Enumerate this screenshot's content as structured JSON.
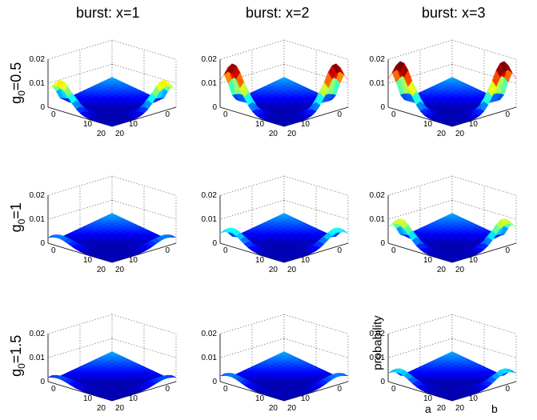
{
  "column_titles": [
    "burst: x=1",
    "burst: x=2",
    "burst: x=3"
  ],
  "row_labels": [
    {
      "prefix": "g",
      "sub": "0",
      "suffix": "=0.5"
    },
    {
      "prefix": "g",
      "sub": "0",
      "suffix": "=1"
    },
    {
      "prefix": "g",
      "sub": "0",
      "suffix": "=1.5"
    }
  ],
  "axis_labels": {
    "z": "probability",
    "a": "a",
    "b": "b"
  },
  "chart_data": {
    "type": "surface3d-grid",
    "rows": [
      "g0=0.5",
      "g0=1",
      "g0=1.5"
    ],
    "columns": [
      "x=1",
      "x=2",
      "x=3"
    ],
    "z_ticks": [
      "0",
      "0.01",
      "0.02"
    ],
    "a_ticks": [
      "0",
      "10",
      "20"
    ],
    "b_ticks": [
      "0",
      "10",
      "20"
    ],
    "zlim": [
      0,
      0.02
    ],
    "colormap": "jet",
    "peak_probability": [
      [
        0.012,
        0.019,
        0.02
      ],
      [
        0.004,
        0.007,
        0.011
      ],
      [
        0.003,
        0.004,
        0.006
      ]
    ],
    "plateau_probability": 0.005
  }
}
